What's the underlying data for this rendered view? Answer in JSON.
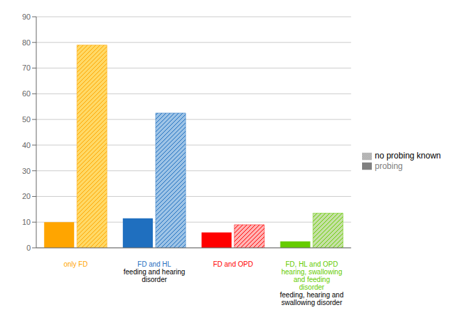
{
  "chart_data": {
    "type": "bar",
    "categories": [
      "only FD",
      "FD and HL",
      "FD and OPD",
      "FD, HL and OPD\nhearing, swallowing\nand feeding\ndisorder"
    ],
    "category_colors": [
      "#FFA500",
      "#1F6FBF",
      "#FF0000",
      "#66CC00"
    ],
    "annotations": [
      null,
      "feeding and hearing\ndisorder",
      null,
      "feeding, hearing and\nswallowing disorder"
    ],
    "series": [
      {
        "name": "probing",
        "color": "#808080",
        "colors": [
          "#FFA500",
          "#1F6FBF",
          "#FF0000",
          "#66CC00"
        ],
        "values": [
          10,
          11.5,
          6,
          2.5
        ]
      },
      {
        "name": "no probing known",
        "color": "#C0C0C0",
        "colors": [
          "#FFD966",
          "#9DC3E6",
          "#FFB3B3",
          "#C5E0A5"
        ],
        "values": [
          79,
          52.5,
          9,
          13.5
        ]
      }
    ],
    "ylim": [
      0,
      90
    ],
    "yticks": [
      0,
      10,
      20,
      30,
      40,
      50,
      60,
      70,
      80,
      90
    ],
    "grid": true,
    "legend": "right"
  }
}
